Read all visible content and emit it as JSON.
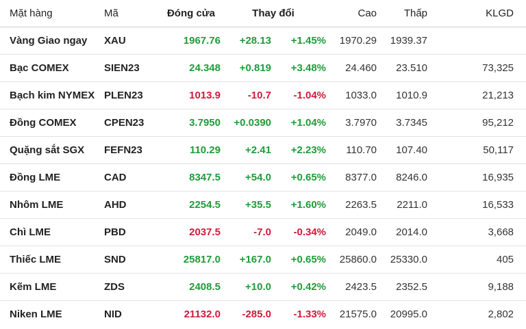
{
  "colors": {
    "up": "#1f9c3a",
    "down": "#d01a3a"
  },
  "table": {
    "headers": {
      "name": "Mặt hàng",
      "symbol": "Mã",
      "close": "Đóng cửa",
      "change": "Thay đổi",
      "high": "Cao",
      "low": "Thấp",
      "volume": "KLGD"
    },
    "rows": [
      {
        "name": "Vàng Giao ngay",
        "symbol": "XAU",
        "close": "1967.76",
        "change": "+28.13",
        "pct": "+1.45%",
        "high": "1970.29",
        "low": "1939.37",
        "volume": "",
        "direction": "up"
      },
      {
        "name": "Bạc COMEX",
        "symbol": "SIEN23",
        "close": "24.348",
        "change": "+0.819",
        "pct": "+3.48%",
        "high": "24.460",
        "low": "23.510",
        "volume": "73,325",
        "direction": "up"
      },
      {
        "name": "Bạch kim NYMEX",
        "symbol": "PLEN23",
        "close": "1013.9",
        "change": "-10.7",
        "pct": "-1.04%",
        "high": "1033.0",
        "low": "1010.9",
        "volume": "21,213",
        "direction": "down"
      },
      {
        "name": "Đồng COMEX",
        "symbol": "CPEN23",
        "close": "3.7950",
        "change": "+0.0390",
        "pct": "+1.04%",
        "high": "3.7970",
        "low": "3.7345",
        "volume": "95,212",
        "direction": "up"
      },
      {
        "name": "Quặng sắt SGX",
        "symbol": "FEFN23",
        "close": "110.29",
        "change": "+2.41",
        "pct": "+2.23%",
        "high": "110.70",
        "low": "107.40",
        "volume": "50,117",
        "direction": "up"
      },
      {
        "name": "Đồng LME",
        "symbol": "CAD",
        "close": "8347.5",
        "change": "+54.0",
        "pct": "+0.65%",
        "high": "8377.0",
        "low": "8246.0",
        "volume": "16,935",
        "direction": "up"
      },
      {
        "name": "Nhôm LME",
        "symbol": "AHD",
        "close": "2254.5",
        "change": "+35.5",
        "pct": "+1.60%",
        "high": "2263.5",
        "low": "2211.0",
        "volume": "16,533",
        "direction": "up"
      },
      {
        "name": "Chì LME",
        "symbol": "PBD",
        "close": "2037.5",
        "change": "-7.0",
        "pct": "-0.34%",
        "high": "2049.0",
        "low": "2014.0",
        "volume": "3,668",
        "direction": "down"
      },
      {
        "name": "Thiếc LME",
        "symbol": "SND",
        "close": "25817.0",
        "change": "+167.0",
        "pct": "+0.65%",
        "high": "25860.0",
        "low": "25330.0",
        "volume": "405",
        "direction": "up"
      },
      {
        "name": "Kẽm LME",
        "symbol": "ZDS",
        "close": "2408.5",
        "change": "+10.0",
        "pct": "+0.42%",
        "high": "2423.5",
        "low": "2352.5",
        "volume": "9,188",
        "direction": "up"
      },
      {
        "name": "Niken LME",
        "symbol": "NID",
        "close": "21132.0",
        "change": "-285.0",
        "pct": "-1.33%",
        "high": "21575.0",
        "low": "20995.0",
        "volume": "2,802",
        "direction": "down"
      }
    ]
  }
}
